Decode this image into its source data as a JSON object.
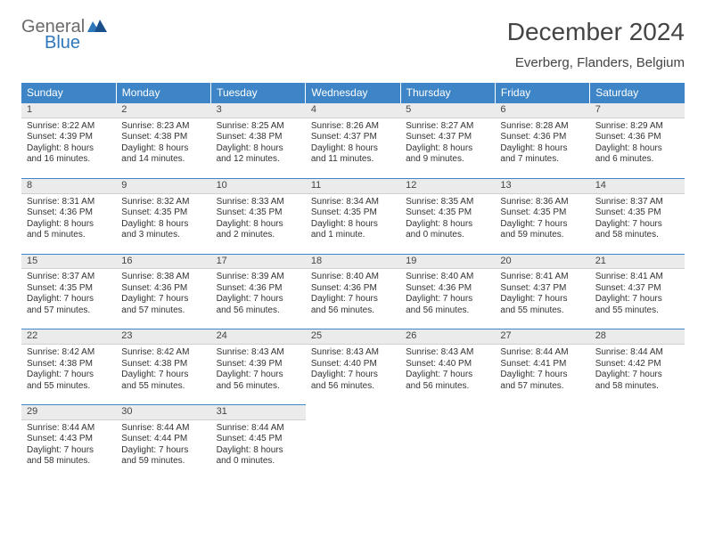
{
  "colors": {
    "header_bar": "#3d85c6",
    "header_text": "#ffffff",
    "daynum_bg": "#ebebeb",
    "daynum_border_top": "#3d85c6",
    "body_text": "#333333",
    "logo_gray": "#6a6a6a",
    "logo_blue": "#2f77bb"
  },
  "logo": {
    "word1": "General",
    "word2": "Blue"
  },
  "title": "December 2024",
  "location": "Everberg, Flanders, Belgium",
  "weekdays": [
    "Sunday",
    "Monday",
    "Tuesday",
    "Wednesday",
    "Thursday",
    "Friday",
    "Saturday"
  ],
  "weeks": [
    [
      {
        "n": "1",
        "sr": "Sunrise: 8:22 AM",
        "ss": "Sunset: 4:39 PM",
        "dl": "Daylight: 8 hours and 16 minutes."
      },
      {
        "n": "2",
        "sr": "Sunrise: 8:23 AM",
        "ss": "Sunset: 4:38 PM",
        "dl": "Daylight: 8 hours and 14 minutes."
      },
      {
        "n": "3",
        "sr": "Sunrise: 8:25 AM",
        "ss": "Sunset: 4:38 PM",
        "dl": "Daylight: 8 hours and 12 minutes."
      },
      {
        "n": "4",
        "sr": "Sunrise: 8:26 AM",
        "ss": "Sunset: 4:37 PM",
        "dl": "Daylight: 8 hours and 11 minutes."
      },
      {
        "n": "5",
        "sr": "Sunrise: 8:27 AM",
        "ss": "Sunset: 4:37 PM",
        "dl": "Daylight: 8 hours and 9 minutes."
      },
      {
        "n": "6",
        "sr": "Sunrise: 8:28 AM",
        "ss": "Sunset: 4:36 PM",
        "dl": "Daylight: 8 hours and 7 minutes."
      },
      {
        "n": "7",
        "sr": "Sunrise: 8:29 AM",
        "ss": "Sunset: 4:36 PM",
        "dl": "Daylight: 8 hours and 6 minutes."
      }
    ],
    [
      {
        "n": "8",
        "sr": "Sunrise: 8:31 AM",
        "ss": "Sunset: 4:36 PM",
        "dl": "Daylight: 8 hours and 5 minutes."
      },
      {
        "n": "9",
        "sr": "Sunrise: 8:32 AM",
        "ss": "Sunset: 4:35 PM",
        "dl": "Daylight: 8 hours and 3 minutes."
      },
      {
        "n": "10",
        "sr": "Sunrise: 8:33 AM",
        "ss": "Sunset: 4:35 PM",
        "dl": "Daylight: 8 hours and 2 minutes."
      },
      {
        "n": "11",
        "sr": "Sunrise: 8:34 AM",
        "ss": "Sunset: 4:35 PM",
        "dl": "Daylight: 8 hours and 1 minute."
      },
      {
        "n": "12",
        "sr": "Sunrise: 8:35 AM",
        "ss": "Sunset: 4:35 PM",
        "dl": "Daylight: 8 hours and 0 minutes."
      },
      {
        "n": "13",
        "sr": "Sunrise: 8:36 AM",
        "ss": "Sunset: 4:35 PM",
        "dl": "Daylight: 7 hours and 59 minutes."
      },
      {
        "n": "14",
        "sr": "Sunrise: 8:37 AM",
        "ss": "Sunset: 4:35 PM",
        "dl": "Daylight: 7 hours and 58 minutes."
      }
    ],
    [
      {
        "n": "15",
        "sr": "Sunrise: 8:37 AM",
        "ss": "Sunset: 4:35 PM",
        "dl": "Daylight: 7 hours and 57 minutes."
      },
      {
        "n": "16",
        "sr": "Sunrise: 8:38 AM",
        "ss": "Sunset: 4:36 PM",
        "dl": "Daylight: 7 hours and 57 minutes."
      },
      {
        "n": "17",
        "sr": "Sunrise: 8:39 AM",
        "ss": "Sunset: 4:36 PM",
        "dl": "Daylight: 7 hours and 56 minutes."
      },
      {
        "n": "18",
        "sr": "Sunrise: 8:40 AM",
        "ss": "Sunset: 4:36 PM",
        "dl": "Daylight: 7 hours and 56 minutes."
      },
      {
        "n": "19",
        "sr": "Sunrise: 8:40 AM",
        "ss": "Sunset: 4:36 PM",
        "dl": "Daylight: 7 hours and 56 minutes."
      },
      {
        "n": "20",
        "sr": "Sunrise: 8:41 AM",
        "ss": "Sunset: 4:37 PM",
        "dl": "Daylight: 7 hours and 55 minutes."
      },
      {
        "n": "21",
        "sr": "Sunrise: 8:41 AM",
        "ss": "Sunset: 4:37 PM",
        "dl": "Daylight: 7 hours and 55 minutes."
      }
    ],
    [
      {
        "n": "22",
        "sr": "Sunrise: 8:42 AM",
        "ss": "Sunset: 4:38 PM",
        "dl": "Daylight: 7 hours and 55 minutes."
      },
      {
        "n": "23",
        "sr": "Sunrise: 8:42 AM",
        "ss": "Sunset: 4:38 PM",
        "dl": "Daylight: 7 hours and 55 minutes."
      },
      {
        "n": "24",
        "sr": "Sunrise: 8:43 AM",
        "ss": "Sunset: 4:39 PM",
        "dl": "Daylight: 7 hours and 56 minutes."
      },
      {
        "n": "25",
        "sr": "Sunrise: 8:43 AM",
        "ss": "Sunset: 4:40 PM",
        "dl": "Daylight: 7 hours and 56 minutes."
      },
      {
        "n": "26",
        "sr": "Sunrise: 8:43 AM",
        "ss": "Sunset: 4:40 PM",
        "dl": "Daylight: 7 hours and 56 minutes."
      },
      {
        "n": "27",
        "sr": "Sunrise: 8:44 AM",
        "ss": "Sunset: 4:41 PM",
        "dl": "Daylight: 7 hours and 57 minutes."
      },
      {
        "n": "28",
        "sr": "Sunrise: 8:44 AM",
        "ss": "Sunset: 4:42 PM",
        "dl": "Daylight: 7 hours and 58 minutes."
      }
    ],
    [
      {
        "n": "29",
        "sr": "Sunrise: 8:44 AM",
        "ss": "Sunset: 4:43 PM",
        "dl": "Daylight: 7 hours and 58 minutes."
      },
      {
        "n": "30",
        "sr": "Sunrise: 8:44 AM",
        "ss": "Sunset: 4:44 PM",
        "dl": "Daylight: 7 hours and 59 minutes."
      },
      {
        "n": "31",
        "sr": "Sunrise: 8:44 AM",
        "ss": "Sunset: 4:45 PM",
        "dl": "Daylight: 8 hours and 0 minutes."
      },
      null,
      null,
      null,
      null
    ]
  ]
}
